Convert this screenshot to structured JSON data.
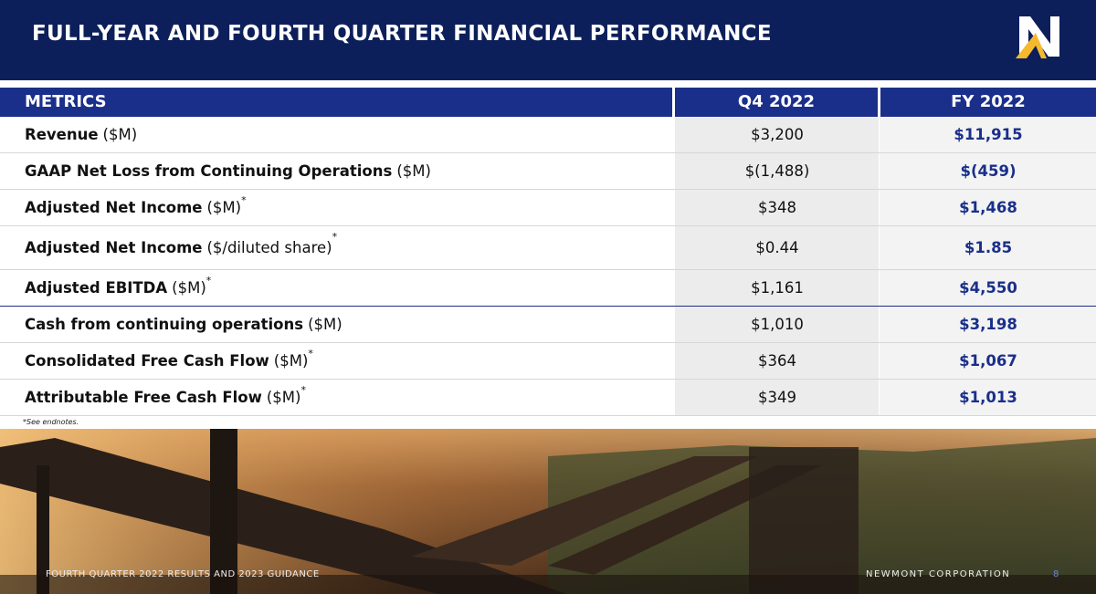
{
  "header": {
    "title": "FULL-YEAR AND FOURTH QUARTER FINANCIAL PERFORMANCE"
  },
  "table": {
    "columns": [
      "METRICS",
      "Q4 2022",
      "FY 2022"
    ],
    "rows": [
      {
        "name": "Revenue",
        "unit": "($M)",
        "q4": "$3,200",
        "fy": "$11,915"
      },
      {
        "name": "GAAP Net Loss from Continuing Operations",
        "unit": "($M)",
        "q4": "$(1,488)",
        "fy": "$(459)"
      },
      {
        "name": "Adjusted Net Income",
        "unit": "($M)",
        "note": "*",
        "q4": "$348",
        "fy": "$1,468"
      },
      {
        "name": "Adjusted Net Income",
        "unit": "($/diluted share)",
        "note": "*",
        "q4": "$0.44",
        "fy": "$1.85"
      },
      {
        "name": "Adjusted EBITDA",
        "unit": "($M)",
        "note": "*",
        "q4": "$1,161",
        "fy": "$4,550"
      },
      {
        "name": "Cash from continuing operations",
        "unit": "($M)",
        "q4": "$1,010",
        "fy": "$3,198"
      },
      {
        "name": "Consolidated Free Cash Flow",
        "unit": "($M)",
        "note": "*",
        "q4": "$364",
        "fy": "$1,067"
      },
      {
        "name": "Attributable Free Cash Flow",
        "unit": "($M)",
        "note": "*",
        "q4": "$349",
        "fy": "$1,013"
      }
    ],
    "footnote": "*See endnotes."
  },
  "footer": {
    "left": "FOURTH QUARTER 2022 RESULTS AND 2023 GUIDANCE",
    "right": "NEWMONT CORPORATION",
    "page": "8"
  }
}
